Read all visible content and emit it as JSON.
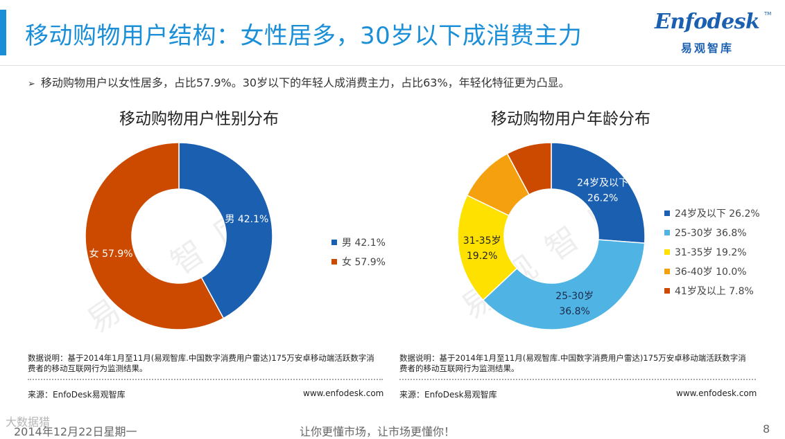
{
  "header": {
    "title": "移动购物用户结构：女性居多，30岁以下成消费主力",
    "logo_main": "Enfodesk",
    "logo_tm": "TM",
    "logo_sub": "易观智库"
  },
  "summary": "移动购物用户以女性居多，占比57.9%。30岁以下的年轻人成消费主力，占比63%，年轻化特征更为凸显。",
  "summary_arrow": "➢",
  "watermark": "易观智库",
  "corner_watermark": "大数据猎",
  "colors": {
    "accent": "#1a8fd8",
    "dark_blue": "#1a5fb0",
    "orange_red": "#cc4a00",
    "light_blue": "#4fb3e3",
    "yellow": "#ffe100",
    "orange": "#f5a10f"
  },
  "chart_data": [
    {
      "type": "pie",
      "variant": "donut",
      "title": "移动购物用户性别分布",
      "unit": "%",
      "slices": [
        {
          "label": "男",
          "value": 42.1,
          "color": "#1a5fb0",
          "data_label": "男 42.1%",
          "legend": "男 42.1%"
        },
        {
          "label": "女",
          "value": 57.9,
          "color": "#cc4a00",
          "data_label": "女 57.9%",
          "legend": "女 57.9%"
        }
      ],
      "legend_position": "right"
    },
    {
      "type": "pie",
      "variant": "donut",
      "title": "移动购物用户年龄分布",
      "unit": "%",
      "slices": [
        {
          "label": "24岁及以下",
          "value": 26.2,
          "color": "#1a5fb0",
          "data_label_line1": "24岁及以下",
          "data_label_line2": "26.2%",
          "legend": "24岁及以下 26.2%"
        },
        {
          "label": "25-30岁",
          "value": 36.8,
          "color": "#4fb3e3",
          "data_label_line1": "25-30岁",
          "data_label_line2": "36.8%",
          "legend": "25-30岁 36.8%"
        },
        {
          "label": "31-35岁",
          "value": 19.2,
          "color": "#ffe100",
          "data_label_line1": "31-35岁",
          "data_label_line2": "19.2%",
          "legend": "31-35岁 19.2%"
        },
        {
          "label": "36-40岁",
          "value": 10.0,
          "color": "#f5a10f",
          "data_label_line1": "",
          "data_label_line2": "",
          "legend": "36-40岁 10.0%"
        },
        {
          "label": "41岁及以上",
          "value": 7.8,
          "color": "#cc4a00",
          "data_label_line1": "",
          "data_label_line2": "",
          "legend": "41岁及以上 7.8%"
        }
      ],
      "legend_position": "right"
    }
  ],
  "notes": {
    "left": "数据说明：基于2014年1月至11月(易观智库.中国数字消费用户雷达)175万安卓移动端活跃数字消费者的移动互联网行为监测结果。",
    "right": "数据说明：基于2014年1月至11月(易观智库.中国数字消费用户雷达)175万安卓移动端活跃数字消费者的移动互联网行为监测结果。",
    "source_left": "来源：EnfoDesk易观智库",
    "source_right": "来源：EnfoDesk易观智库",
    "site_left": "www.enfodesk.com",
    "site_right": "www.enfodesk.com"
  },
  "footer": {
    "date": "2014年12月22日星期一",
    "slogan": "让你更懂市场，让市场更懂你！",
    "page": "8"
  }
}
